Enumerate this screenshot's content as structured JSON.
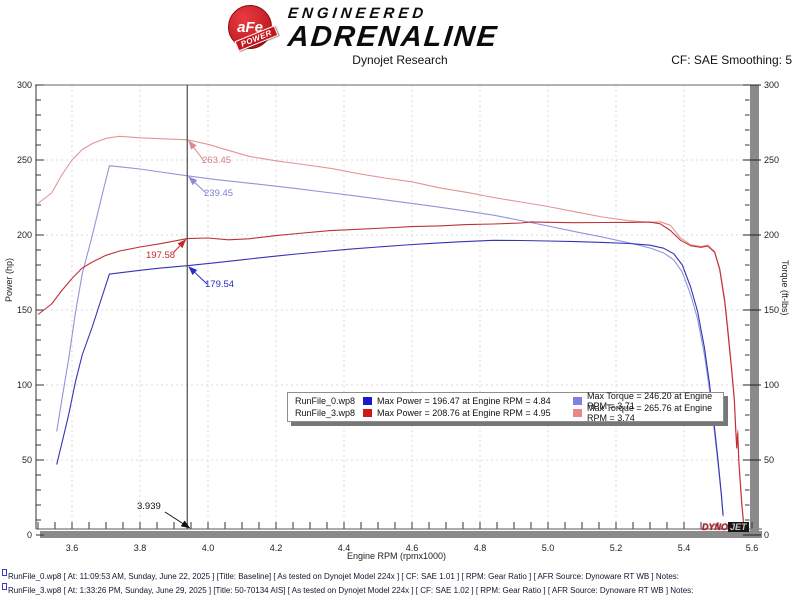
{
  "header": {
    "brand_circle": "aFe",
    "brand_power": "POWER",
    "brand_line1": "ENGINEERED",
    "brand_line2": "ADRENALINE",
    "title": "Dynojet Research",
    "smoothing": "CF: SAE Smoothing: 5"
  },
  "chart_data": {
    "type": "line",
    "xlabel": "Engine RPM (rpmx1000)",
    "ylabel_left": "Power (hp)",
    "ylabel_right": "Torque (ft-lbs)",
    "xlim": [
      3.49,
      5.6
    ],
    "ylim": [
      0,
      300
    ],
    "x_major_ticks": [
      3.6,
      3.8,
      4.0,
      4.2,
      4.4,
      4.6,
      4.8,
      5.0,
      5.2,
      5.4,
      5.6
    ],
    "x_minor_step": 0.05,
    "y_major_ticks": [
      0,
      50,
      100,
      150,
      200,
      250,
      300
    ],
    "y_minor_step": 10,
    "grid": "dashed",
    "cursor": {
      "rpm": 3.939,
      "label": "3.939",
      "readings": [
        {
          "id": "t3",
          "series": "torque_3",
          "value": 263.45,
          "label": "263.45",
          "color": "#d98a8d"
        },
        {
          "id": "t0",
          "series": "torque_0",
          "value": 239.45,
          "label": "239.45",
          "color": "#8a8ad9"
        },
        {
          "id": "p3",
          "series": "power_3",
          "value": 197.58,
          "label": "197.58",
          "color": "#c22a2a"
        },
        {
          "id": "p0",
          "series": "power_0",
          "value": 179.54,
          "label": "179.54",
          "color": "#2a2ac2"
        }
      ]
    },
    "series": [
      {
        "name": "torque_3",
        "run": "RunFile_3.wp8",
        "unit": "ft-lbs",
        "color": "#e29598",
        "points": [
          [
            3.5,
            221
          ],
          [
            3.54,
            228
          ],
          [
            3.57,
            240
          ],
          [
            3.6,
            250
          ],
          [
            3.63,
            257
          ],
          [
            3.66,
            261
          ],
          [
            3.7,
            264.5
          ],
          [
            3.74,
            265.8
          ],
          [
            3.8,
            264.8
          ],
          [
            3.86,
            264.2
          ],
          [
            3.939,
            263.45
          ],
          [
            4.0,
            260.5
          ],
          [
            4.06,
            256.5
          ],
          [
            4.12,
            252.5
          ],
          [
            4.2,
            249.5
          ],
          [
            4.28,
            247
          ],
          [
            4.36,
            244.5
          ],
          [
            4.44,
            241
          ],
          [
            4.52,
            238
          ],
          [
            4.6,
            235.5
          ],
          [
            4.68,
            231.5
          ],
          [
            4.76,
            228.5
          ],
          [
            4.84,
            225
          ],
          [
            4.92,
            222
          ],
          [
            5.0,
            219
          ],
          [
            5.08,
            215.5
          ],
          [
            5.16,
            212
          ],
          [
            5.24,
            209.5
          ],
          [
            5.3,
            208.5
          ],
          [
            5.33,
            208.8
          ],
          [
            5.36,
            206.5
          ],
          [
            5.39,
            198
          ],
          [
            5.42,
            193.5
          ],
          [
            5.45,
            192.3
          ],
          [
            5.47,
            193.2
          ],
          [
            5.49,
            189
          ],
          [
            5.505,
            178
          ],
          [
            5.52,
            157
          ],
          [
            5.53,
            136
          ],
          [
            5.54,
            112
          ],
          [
            5.548,
            92
          ],
          [
            5.552,
            72
          ],
          [
            5.555,
            60
          ],
          [
            5.558,
            70
          ],
          [
            5.561,
            52
          ],
          [
            5.565,
            38
          ],
          [
            5.57,
            22
          ],
          [
            5.575,
            10
          ]
        ]
      },
      {
        "name": "torque_0",
        "run": "RunFile_0.wp8",
        "unit": "ft-lbs",
        "color": "#9095d8",
        "points": [
          [
            3.555,
            69
          ],
          [
            3.57,
            90
          ],
          [
            3.59,
            117
          ],
          [
            3.61,
            148
          ],
          [
            3.63,
            174
          ],
          [
            3.66,
            200
          ],
          [
            3.69,
            228
          ],
          [
            3.71,
            246.2
          ],
          [
            3.74,
            245.5
          ],
          [
            3.8,
            244
          ],
          [
            3.86,
            242
          ],
          [
            3.939,
            239.45
          ],
          [
            4.02,
            237.1
          ],
          [
            4.1,
            235.1
          ],
          [
            4.18,
            233.1
          ],
          [
            4.26,
            230.9
          ],
          [
            4.34,
            228.7
          ],
          [
            4.42,
            226.5
          ],
          [
            4.5,
            224.1
          ],
          [
            4.58,
            221.6
          ],
          [
            4.66,
            219.2
          ],
          [
            4.74,
            216.6
          ],
          [
            4.84,
            213.2
          ],
          [
            4.92,
            209.7
          ],
          [
            5.0,
            206
          ],
          [
            5.08,
            202.2
          ],
          [
            5.16,
            198.6
          ],
          [
            5.24,
            194.7
          ],
          [
            5.3,
            191.3
          ],
          [
            5.34,
            188.1
          ],
          [
            5.37,
            183.4
          ],
          [
            5.395,
            175.2
          ],
          [
            5.42,
            159.9
          ],
          [
            5.44,
            143.9
          ],
          [
            5.46,
            120.2
          ],
          [
            5.475,
            96.9
          ],
          [
            5.49,
            67.9
          ],
          [
            5.5,
            47.8
          ],
          [
            5.51,
            25.8
          ],
          [
            5.515,
            12.4
          ]
        ]
      },
      {
        "name": "power_3",
        "run": "RunFile_3.wp8",
        "unit": "hp",
        "color": "#c03036",
        "points": [
          [
            3.5,
            147
          ],
          [
            3.54,
            154
          ],
          [
            3.57,
            163
          ],
          [
            3.6,
            171
          ],
          [
            3.63,
            178
          ],
          [
            3.66,
            182
          ],
          [
            3.7,
            186.5
          ],
          [
            3.74,
            189.3
          ],
          [
            3.8,
            192
          ],
          [
            3.86,
            194.2
          ],
          [
            3.939,
            197.58
          ],
          [
            4.0,
            198
          ],
          [
            4.06,
            196.8
          ],
          [
            4.12,
            197.5
          ],
          [
            4.2,
            199.6
          ],
          [
            4.28,
            201.3
          ],
          [
            4.36,
            202.9
          ],
          [
            4.44,
            203.8
          ],
          [
            4.52,
            204.7
          ],
          [
            4.6,
            205.6
          ],
          [
            4.68,
            206.1
          ],
          [
            4.76,
            206.9
          ],
          [
            4.84,
            207.3
          ],
          [
            4.92,
            208
          ],
          [
            4.95,
            208.76
          ],
          [
            5.0,
            208.5
          ],
          [
            5.08,
            208.2
          ],
          [
            5.16,
            208.3
          ],
          [
            5.24,
            208.4
          ],
          [
            5.3,
            208.6
          ],
          [
            5.33,
            207.5
          ],
          [
            5.36,
            203
          ],
          [
            5.39,
            196.5
          ],
          [
            5.42,
            192.8
          ],
          [
            5.45,
            191.8
          ],
          [
            5.47,
            192.6
          ],
          [
            5.49,
            188.5
          ],
          [
            5.505,
            177
          ],
          [
            5.52,
            155
          ],
          [
            5.53,
            133
          ],
          [
            5.54,
            110
          ],
          [
            5.548,
            90
          ],
          [
            5.552,
            70
          ],
          [
            5.555,
            58
          ],
          [
            5.558,
            68
          ],
          [
            5.561,
            50
          ],
          [
            5.565,
            36
          ],
          [
            5.57,
            20
          ],
          [
            5.575,
            8
          ]
        ]
      },
      {
        "name": "power_0",
        "run": "RunFile_0.wp8",
        "unit": "hp",
        "color": "#3434b4",
        "points": [
          [
            3.555,
            47
          ],
          [
            3.57,
            61
          ],
          [
            3.59,
            80
          ],
          [
            3.61,
            102
          ],
          [
            3.63,
            120
          ],
          [
            3.66,
            139
          ],
          [
            3.69,
            160
          ],
          [
            3.71,
            173.9
          ],
          [
            3.74,
            174.8
          ],
          [
            3.8,
            176.5
          ],
          [
            3.86,
            177.9
          ],
          [
            3.939,
            179.54
          ],
          [
            4.02,
            181.5
          ],
          [
            4.1,
            183.5
          ],
          [
            4.18,
            185.5
          ],
          [
            4.26,
            187.3
          ],
          [
            4.34,
            189
          ],
          [
            4.42,
            190.6
          ],
          [
            4.5,
            192
          ],
          [
            4.58,
            193.3
          ],
          [
            4.66,
            194.5
          ],
          [
            4.74,
            195.5
          ],
          [
            4.84,
            196.47
          ],
          [
            4.92,
            196.3
          ],
          [
            5.0,
            196
          ],
          [
            5.08,
            195.6
          ],
          [
            5.16,
            195.1
          ],
          [
            5.24,
            194.3
          ],
          [
            5.3,
            193.2
          ],
          [
            5.34,
            191.2
          ],
          [
            5.37,
            187.5
          ],
          [
            5.395,
            180
          ],
          [
            5.42,
            165
          ],
          [
            5.44,
            149
          ],
          [
            5.46,
            125
          ],
          [
            5.475,
            101
          ],
          [
            5.49,
            71
          ],
          [
            5.5,
            50
          ],
          [
            5.51,
            27
          ],
          [
            5.515,
            13
          ]
        ]
      }
    ],
    "watermark": {
      "part1": "DYNO",
      "part2": "JET"
    }
  },
  "legend": {
    "rows": [
      {
        "file": "RunFile_0.wp8",
        "power_color": "#1a1acc",
        "power_label": "Max Power = 196.47 at Engine RPM = 4.84",
        "torque_color": "#8080dd",
        "torque_label": "Max Torque = 246.20 at Engine RPM = 3.71"
      },
      {
        "file": "RunFile_3.wp8",
        "power_color": "#cc1a1a",
        "power_label": "Max Power = 208.76 at Engine RPM = 4.95",
        "torque_color": "#e88888",
        "torque_label": "Max Torque = 265.76 at Engine RPM = 3.74"
      }
    ]
  },
  "footer": {
    "lines": [
      {
        "text": "RunFile_0.wp8 [ At: 11:09:53 AM, Sunday, June 22, 2025 ] [Title: Baseline]  [ As tested on Dynojet Model 224x ] [ CF: SAE 1.01 ] [ RPM: Gear Ratio ] [ AFR Source: Dynoware RT WB ] Notes:"
      },
      {
        "text": "RunFile_3.wp8 [ At: 1:33:26 PM, Sunday, June 29, 2025 ] [Title: 50-70134 AIS]  [ As tested on Dynojet Model 224x ] [ CF: SAE 1.02 ] [ RPM: Gear Ratio ] [ AFR Source: Dynoware RT WB ] Notes:"
      }
    ]
  }
}
